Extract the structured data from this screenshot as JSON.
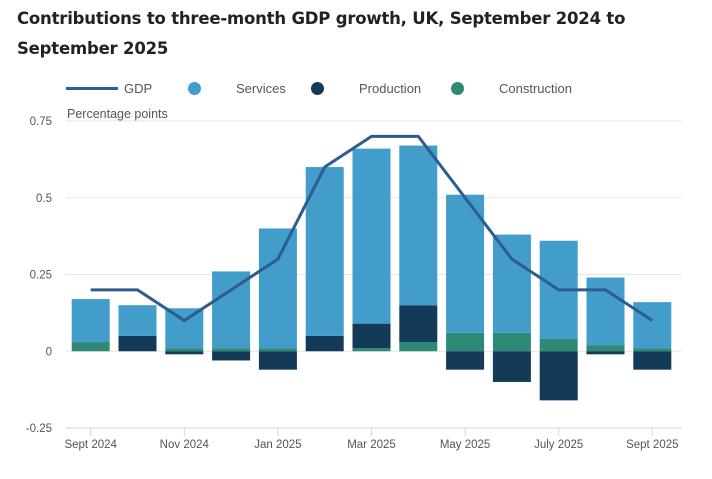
{
  "chart_data": {
    "type": "bar",
    "stacked": true,
    "title": "Contributions to three-month GDP growth, UK, September 2024 to September 2025",
    "title_lines": [
      "Contributions to three-month GDP growth, UK, September 2024 to",
      "September 2025"
    ],
    "ylabel": "Percentage points",
    "xlabel": "",
    "ylim": [
      -0.25,
      0.75
    ],
    "yticks": [
      0.75,
      0.5,
      0.25,
      0,
      -0.25
    ],
    "ytick_labels": [
      "0.75",
      "0.5",
      "0.25",
      "0",
      "-0.25"
    ],
    "grid": true,
    "legend_position": "top-left",
    "categories": [
      "Sep 2024",
      "Oct 2024",
      "Nov 2024",
      "Dec 2024",
      "Jan 2025",
      "Feb 2025",
      "Mar 2025",
      "Apr 2025",
      "May 2025",
      "Jun 2025",
      "Jul 2025",
      "Aug 2025",
      "Sep 2025"
    ],
    "xtick_labels": [
      {
        "index": 0,
        "label": "Sept 2024"
      },
      {
        "index": 2,
        "label": "Nov 2024"
      },
      {
        "index": 4,
        "label": "Jan 2025"
      },
      {
        "index": 6,
        "label": "Mar 2025"
      },
      {
        "index": 8,
        "label": "May 2025"
      },
      {
        "index": 10,
        "label": "July 2025"
      },
      {
        "index": 12,
        "label": "Sept 2025"
      }
    ],
    "series": [
      {
        "name": "Services",
        "type": "bar",
        "color": "#439DCA",
        "values": [
          0.14,
          0.1,
          0.13,
          0.25,
          0.39,
          0.55,
          0.57,
          0.52,
          0.45,
          0.32,
          0.32,
          0.22,
          0.15
        ]
      },
      {
        "name": "Production",
        "type": "bar",
        "color": "#133A56",
        "values": [
          0.0,
          0.05,
          -0.01,
          -0.03,
          -0.06,
          0.05,
          0.08,
          0.12,
          -0.06,
          -0.1,
          -0.16,
          -0.01,
          -0.06
        ]
      },
      {
        "name": "Construction",
        "type": "bar",
        "color": "#2E8A77",
        "values": [
          0.03,
          0.0,
          0.01,
          0.01,
          0.01,
          0.0,
          0.01,
          0.03,
          0.06,
          0.06,
          0.04,
          0.02,
          0.01
        ]
      },
      {
        "name": "GDP",
        "type": "line",
        "color": "#2D5C8E",
        "values": [
          0.2,
          0.2,
          0.1,
          0.2,
          0.3,
          0.6,
          0.7,
          0.7,
          0.5,
          0.3,
          0.2,
          0.2,
          0.1
        ]
      }
    ]
  },
  "legend": [
    {
      "name": "GDP",
      "kind": "line",
      "color": "#2D5C8E"
    },
    {
      "name": "Services",
      "kind": "dot",
      "color": "#439DCA"
    },
    {
      "name": "Production",
      "kind": "dot",
      "color": "#133A56"
    },
    {
      "name": "Construction",
      "kind": "dot",
      "color": "#2E8A77"
    }
  ]
}
